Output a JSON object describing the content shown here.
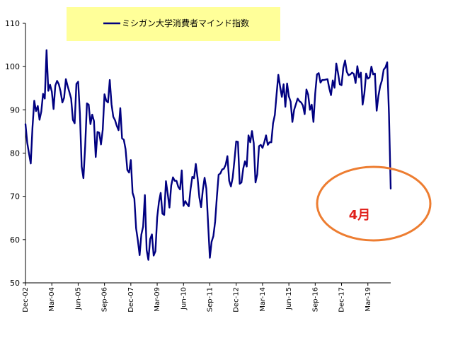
{
  "chart_data": {
    "type": "line",
    "title": "",
    "xlabel": "",
    "ylabel": "",
    "ylim": [
      50,
      110
    ],
    "y_ticks": [
      50,
      60,
      70,
      80,
      90,
      100,
      110
    ],
    "x_tick_labels": [
      "Dec-02",
      "Mar-04",
      "Jun-05",
      "Sep-06",
      "Dec-07",
      "Mar-09",
      "Jun-10",
      "Sep-11",
      "Dec-12",
      "Mar-14",
      "Jun-15",
      "Sep-16",
      "Dec-17",
      "Mar-19"
    ],
    "x_start": "2002-12",
    "x_end": "2020-04",
    "legend": {
      "placement": "top",
      "background": "#ffff99",
      "label": "ミシガン大学消費者マインド指数"
    },
    "annotation": {
      "text": "4月",
      "color": "#e0201b",
      "ellipse_color": "#ed7d31"
    },
    "series": [
      {
        "name": "ミシガン大学消費者マインド指数",
        "color": "#000080",
        "values": [
          86.7,
          82.4,
          79.9,
          77.6,
          86.0,
          92.1,
          89.7,
          90.9,
          87.7,
          89.6,
          93.7,
          92.6,
          103.8,
          94.4,
          95.8,
          94.2,
          90.2,
          95.6,
          96.7,
          95.9,
          94.2,
          91.7,
          92.8,
          97.1,
          95.5,
          94.1,
          92.6,
          87.7,
          86.9,
          96.0,
          96.5,
          89.1,
          76.9,
          74.2,
          81.6,
          91.5,
          91.2,
          86.7,
          88.9,
          87.4,
          79.1,
          84.9,
          84.7,
          82.0,
          85.4,
          93.6,
          92.1,
          91.7,
          96.9,
          91.3,
          88.4,
          87.6,
          86.3,
          85.3,
          90.4,
          83.4,
          83.1,
          80.9,
          76.1,
          75.5,
          78.4,
          70.8,
          69.5,
          62.6,
          59.8,
          56.4,
          61.2,
          63.0,
          70.3,
          57.6,
          55.3,
          60.1,
          61.2,
          56.3,
          57.3,
          65.1,
          68.7,
          70.8,
          66.0,
          65.7,
          73.5,
          70.6,
          67.4,
          72.5,
          74.4,
          73.6,
          73.6,
          72.2,
          71.6,
          76.0,
          67.8,
          68.9,
          68.2,
          67.7,
          71.6,
          74.5,
          74.2,
          77.5,
          74.3,
          69.8,
          67.5,
          71.5,
          74.3,
          71.8,
          63.7,
          55.8,
          59.5,
          60.8,
          64.1,
          69.9,
          75.0,
          75.3,
          76.2,
          76.4,
          77.3,
          79.3,
          73.6,
          72.3,
          74.3,
          78.3,
          82.7,
          82.6,
          72.9,
          73.2,
          76.4,
          78.1,
          76.9,
          84.1,
          82.5,
          85.1,
          82.3,
          73.2,
          75.1,
          81.6,
          81.9,
          81.2,
          82.5,
          84.1,
          81.9,
          82.5,
          82.5,
          86.9,
          88.8,
          93.6,
          98.1,
          95.4,
          93.0,
          95.9,
          90.7,
          96.1,
          93.1,
          91.9,
          87.2,
          90.0,
          91.3,
          92.6,
          92.0,
          91.7,
          91.0,
          89.0,
          94.7,
          93.5,
          90.0,
          91.2,
          87.2,
          93.8,
          98.2,
          98.5,
          96.3,
          96.9,
          96.9,
          97.0,
          97.1,
          95.0,
          93.4,
          96.8,
          95.1,
          100.7,
          98.5,
          95.9,
          95.7,
          99.7,
          101.4,
          98.8,
          98.0,
          98.2,
          98.6,
          98.3,
          96.2,
          100.1,
          97.5,
          98.6,
          91.2,
          93.8,
          98.4,
          97.2,
          97.5,
          100.0,
          98.2,
          98.4,
          89.8,
          93.2,
          95.5,
          96.8,
          99.3,
          99.8,
          101.0,
          89.1,
          71.8
        ]
      }
    ]
  }
}
